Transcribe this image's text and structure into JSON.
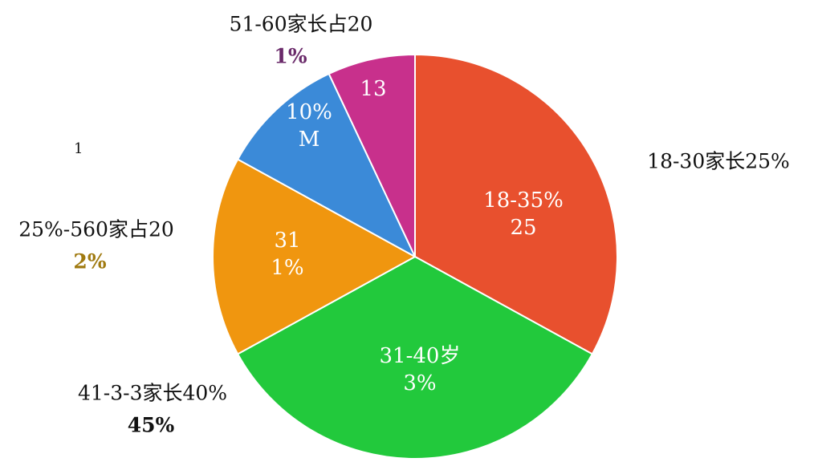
{
  "chart_data": {
    "type": "pie",
    "values": [
      33,
      34,
      16,
      10,
      7
    ],
    "colors": [
      "#e8502e",
      "#22c93c",
      "#f0960f",
      "#3b8ad8",
      "#c8308c"
    ],
    "inner_labels": [
      [
        "18-35%",
        "25"
      ],
      [
        "31-40岁",
        "3%"
      ],
      [
        "31",
        "1%"
      ],
      [
        "10%",
        "M"
      ],
      [
        "13"
      ]
    ],
    "outer_labels": [
      [
        "18-30家长25%"
      ],
      [
        "41-3-3家长40%",
        "45%"
      ],
      [
        "25%-560家占20",
        "2%"
      ],
      [],
      [
        "51-60家长占20",
        "1%"
      ]
    ],
    "annotations": [
      "1"
    ]
  }
}
